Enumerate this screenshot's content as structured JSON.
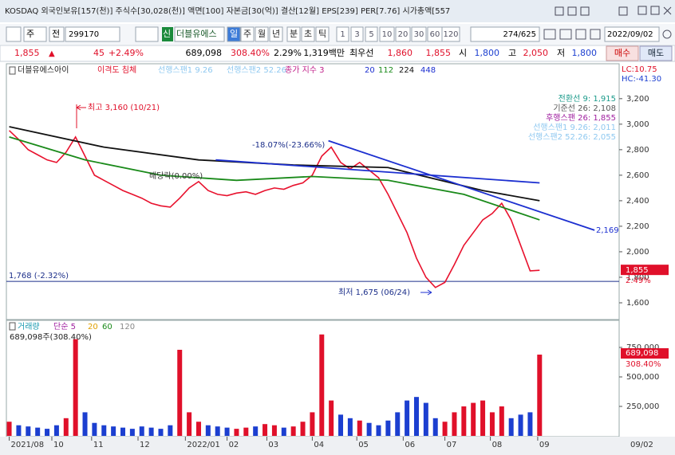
{
  "title_bar": {
    "text": "KOSDAQ 외국인보유[157(천)] 주식수[30,028(천)] 액면[100] 자본금[30(억)] 결산[12월] EPS[239] PER[7.76] 시가총액[557"
  },
  "toolbar": {
    "market": "주",
    "type": "전",
    "code": "299170",
    "badge": "신",
    "name": "더블유에스",
    "periods": [
      "일",
      "주",
      "월",
      "년",
      "분",
      "초",
      "틱"
    ],
    "intervals": [
      "1",
      "3",
      "5",
      "10",
      "20",
      "30",
      "60",
      "120"
    ],
    "count": "274/625",
    "date": "2022/09/02"
  },
  "quote": {
    "price": "1,855",
    "change": "45",
    "change_pct": "+2.49%",
    "volume": "689,098",
    "volume_pct": "308.40%",
    "turnover": "2.29%",
    "amount": "1,319백만",
    "best_label": "최우선",
    "ask": "1,860",
    "bid": "1,855",
    "open_label": "시",
    "open": "1,800",
    "high_label": "고",
    "high": "2,050",
    "low_label": "저",
    "low": "1,800",
    "buy": "매수",
    "sell": "매도"
  },
  "chart_data": [
    {
      "type": "line",
      "legend_texts": [
        "더블유에스아이",
        "이격도 침체",
        "선행스팬1 9.26",
        "선행스팬2 52.26",
        "종가 지수 3",
        "20",
        "112",
        "224",
        "448"
      ],
      "legend_colors": [
        "#222222",
        "#e0102a",
        "#8ec8f0",
        "#8ec8f0",
        "#c0208a",
        "#1c2fd0",
        "#1a8a1a",
        "#111111",
        "#1c2fd0"
      ],
      "corner_texts": [
        "LC:10.75",
        "HC:-41.30"
      ],
      "indicator_texts": [
        "전환선 9: 1,915",
        "기준선 26: 2,108",
        "후행스팬 26: 1,855",
        "선행스팬1 9.26: 2,011",
        "선행스팬2 52.26: 2,055"
      ],
      "indicator_colors": [
        "#1a9a8a",
        "#555555",
        "#a020a0",
        "#8ec8f0",
        "#8ec8f0"
      ],
      "annotations": [
        "최고 3,160 (10/21)",
        "배당락(0.00%)",
        "-18.07%(-23.66%)",
        "1,768 (-2.32%)",
        "최저 1,675 (06/24)",
        "2,169"
      ],
      "price_tag": "1,855",
      "change_tag": "2.49%",
      "x": [
        0,
        1,
        2,
        3,
        4,
        5,
        6,
        7,
        8,
        9,
        10,
        11,
        12,
        13,
        14,
        15,
        16,
        17,
        18,
        19,
        20,
        21,
        22,
        23,
        24,
        25,
        26,
        27,
        28,
        29,
        30,
        31,
        32,
        33,
        34,
        35,
        36,
        37,
        38,
        39,
        40,
        41,
        42,
        43,
        44,
        45,
        46,
        47,
        48,
        49,
        50,
        51,
        52,
        53,
        54,
        55,
        56
      ],
      "series": [
        {
          "color": "#e8112d",
          "values": [
            2950,
            2880,
            2800,
            2760,
            2720,
            2700,
            2780,
            2900,
            2750,
            2600,
            2560,
            2520,
            2480,
            2450,
            2420,
            2380,
            2360,
            2350,
            2420,
            2500,
            2550,
            2480,
            2450,
            2440,
            2460,
            2470,
            2450,
            2480,
            2500,
            2490,
            2520,
            2540,
            2600,
            2750,
            2820,
            2700,
            2650,
            2700,
            2640,
            2580,
            2450,
            2300,
            2150,
            1950,
            1800,
            1720,
            1760,
            1900,
            2050,
            2150,
            2250,
            2300,
            2380,
            2250,
            2050,
            1850,
            1855
          ]
        },
        {
          "color": "#1a8a1a",
          "x": [
            0,
            8,
            16,
            24,
            32,
            40,
            48,
            56
          ],
          "values": [
            2900,
            2720,
            2600,
            2560,
            2590,
            2560,
            2450,
            2250
          ]
        },
        {
          "color": "#111111",
          "x": [
            0,
            10,
            20,
            30,
            40,
            50,
            56
          ],
          "values": [
            2980,
            2820,
            2720,
            2680,
            2660,
            2480,
            2400
          ]
        },
        {
          "color": "#1c2fd0",
          "x": [
            33.7,
            61.8
          ],
          "values": [
            2870,
            2169
          ]
        },
        {
          "color": "#1c2fd0",
          "x": [
            21.8,
            56
          ],
          "values": [
            2720,
            2540
          ]
        }
      ],
      "hline": 1768,
      "hline_color": "#1c2f8a",
      "xlim": [
        -0.3,
        64.4
      ],
      "ylim": [
        1475,
        3380
      ],
      "yticks": [
        {
          "value": 1600,
          "label": "1,600"
        },
        {
          "value": 1800,
          "label": "1,800"
        },
        {
          "value": 2000,
          "label": "2,000"
        },
        {
          "value": 2200,
          "label": "2,200"
        },
        {
          "value": 2400,
          "label": "2,400"
        },
        {
          "value": 2600,
          "label": "2,600"
        },
        {
          "value": 2800,
          "label": "2,800"
        },
        {
          "value": 3000,
          "label": "3,000"
        },
        {
          "value": 3200,
          "label": "3,200"
        }
      ]
    },
    {
      "type": "bar",
      "legend_texts": [
        "거래량",
        "단순 5",
        "20",
        "60",
        "120"
      ],
      "legend_colors": [
        "#1a9ab0",
        "#a020a0",
        "#e0a000",
        "#1a8a1a",
        "#888888"
      ],
      "subtitle": "689,098주(308.40%)",
      "value_tag": "689,098",
      "pct_tag": "308.40%",
      "values": [
        120000,
        90000,
        80000,
        70000,
        60000,
        90000,
        150000,
        820000,
        200000,
        110000,
        90000,
        80000,
        70000,
        60000,
        80000,
        70000,
        60000,
        90000,
        730000,
        200000,
        120000,
        90000,
        80000,
        70000,
        60000,
        70000,
        80000,
        100000,
        90000,
        70000,
        80000,
        120000,
        200000,
        860000,
        300000,
        180000,
        150000,
        130000,
        110000,
        90000,
        130000,
        200000,
        300000,
        330000,
        280000,
        150000,
        120000,
        200000,
        250000,
        280000,
        300000,
        200000,
        250000,
        150000,
        180000,
        200000,
        689098
      ],
      "up_color": "#e0102a",
      "down_color": "#1c3fd0",
      "ylim": [
        0,
        946000
      ],
      "yticks": [
        {
          "value": 250000,
          "label": "250,000"
        },
        {
          "value": 500000,
          "label": "500,000"
        },
        {
          "value": 750000,
          "label": "750,000"
        }
      ],
      "xticks": [
        {
          "value": 0,
          "label": "2021/08"
        },
        {
          "value": 4.5,
          "label": "10"
        },
        {
          "value": 8.7,
          "label": "11"
        },
        {
          "value": 13.6,
          "label": "12"
        },
        {
          "value": 18.6,
          "label": "2022/01"
        },
        {
          "value": 23,
          "label": "02"
        },
        {
          "value": 27.2,
          "label": "03"
        },
        {
          "value": 32,
          "label": "04"
        },
        {
          "value": 36.7,
          "label": "05"
        },
        {
          "value": 41.6,
          "label": "06"
        },
        {
          "value": 46,
          "label": "07"
        },
        {
          "value": 50.8,
          "label": "08"
        },
        {
          "value": 55.8,
          "label": "09"
        }
      ],
      "end_label": "09/02"
    }
  ]
}
